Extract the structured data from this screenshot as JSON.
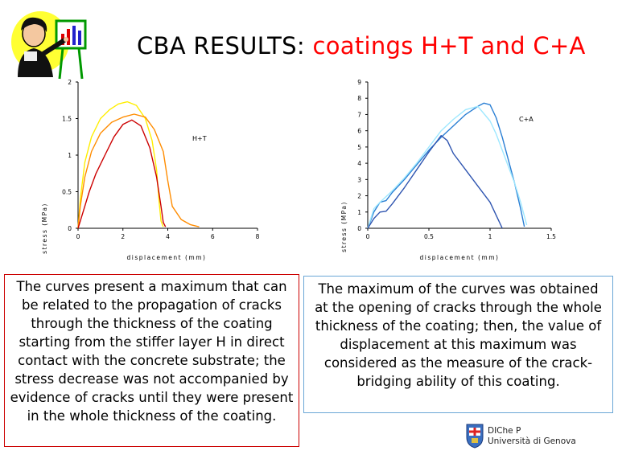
{
  "slide": {
    "title_prefix": "CBA RESULTS: ",
    "title_highlight": "coatings H+T and C+A",
    "left_text": "The curves present a maximum that can be related to the propagation of cracks through the thickness of the coating starting from the stiffer layer H in direct contact with the concrete substrate; the stress decrease was not accompanied by evidence of cracks until they were present in the whole thickness of the coating.",
    "right_text": "The maximum of the curves was obtained at the opening of cracks through the whole thickness of the coating; then, the value of displacement at this maximum was considered as the measure of the crack-bridging ability of this coating.",
    "footer_line1": "DIChe P",
    "footer_line2": "Università di Genova"
  },
  "chart_data": [
    {
      "type": "line",
      "annotation": "H+T",
      "xlabel": "displacement (mm)",
      "ylabel": "stress (MPa)",
      "xlim": [
        0,
        8
      ],
      "ylim": [
        0,
        2
      ],
      "xticks": [
        0,
        2,
        4,
        6,
        8
      ],
      "yticks": [
        0,
        0.5,
        1,
        1.5,
        2
      ],
      "ytick_labels": [
        "0",
        "0.5",
        "1",
        "1.5",
        "2"
      ],
      "grid": false,
      "series": [
        {
          "color": "#ffee00",
          "x": [
            0,
            0.1,
            0.3,
            0.6,
            1,
            1.4,
            1.8,
            2.2,
            2.6,
            3.0,
            3.3,
            3.5,
            3.6,
            3.7,
            3.8
          ],
          "y": [
            0,
            0.4,
            0.9,
            1.25,
            1.5,
            1.62,
            1.7,
            1.73,
            1.68,
            1.5,
            1.2,
            0.8,
            0.4,
            0.1,
            0.02
          ]
        },
        {
          "color": "#ff8c00",
          "x": [
            0,
            0.1,
            0.3,
            0.6,
            1,
            1.5,
            2,
            2.5,
            3.0,
            3.4,
            3.8,
            4.0,
            4.2,
            4.6,
            5.0,
            5.4
          ],
          "y": [
            0,
            0.3,
            0.7,
            1.05,
            1.3,
            1.45,
            1.52,
            1.56,
            1.52,
            1.35,
            1.05,
            0.65,
            0.3,
            0.12,
            0.05,
            0.02
          ]
        },
        {
          "color": "#cc0000",
          "x": [
            0,
            0.2,
            0.5,
            0.8,
            1.2,
            1.6,
            2.0,
            2.4,
            2.8,
            3.2,
            3.5,
            3.7,
            3.8,
            3.9
          ],
          "y": [
            0,
            0.2,
            0.5,
            0.75,
            1.0,
            1.25,
            1.42,
            1.48,
            1.4,
            1.1,
            0.7,
            0.3,
            0.08,
            0.02
          ]
        }
      ]
    },
    {
      "type": "line",
      "annotation": "C+A",
      "xlabel": "displacement (mm)",
      "ylabel": "stress (MPa)",
      "xlim": [
        0,
        1.5
      ],
      "ylim": [
        0,
        9
      ],
      "xticks": [
        0,
        0.5,
        1,
        1.5
      ],
      "yticks": [
        0,
        1,
        2,
        3,
        4,
        5,
        6,
        7,
        8,
        9
      ],
      "ytick_labels": [
        "0",
        "1",
        "2",
        "3",
        "4",
        "5",
        "6",
        "7",
        "8",
        "9"
      ],
      "grid": false,
      "series": [
        {
          "color": "#2a7fd4",
          "x": [
            0,
            0.05,
            0.1,
            0.15,
            0.2,
            0.3,
            0.4,
            0.5,
            0.6,
            0.7,
            0.8,
            0.9,
            0.95,
            1.0,
            1.05,
            1.1,
            1.15,
            1.2,
            1.25,
            1.28
          ],
          "y": [
            0,
            1.0,
            1.6,
            1.7,
            2.2,
            3.0,
            3.9,
            4.8,
            5.6,
            6.3,
            7.0,
            7.5,
            7.7,
            7.6,
            6.8,
            5.6,
            4.2,
            2.8,
            1.2,
            0.1
          ]
        },
        {
          "color": "#9ee8ff",
          "x": [
            0,
            0.05,
            0.1,
            0.2,
            0.3,
            0.4,
            0.5,
            0.6,
            0.7,
            0.8,
            0.9,
            1.0,
            1.05,
            1.1,
            1.15,
            1.2,
            1.25,
            1.3
          ],
          "y": [
            0,
            1.2,
            1.6,
            2.3,
            3.1,
            4.0,
            5.0,
            6.0,
            6.7,
            7.3,
            7.5,
            6.6,
            5.8,
            4.8,
            3.8,
            2.8,
            1.6,
            0.2
          ]
        },
        {
          "color": "#2f55b0",
          "x": [
            0,
            0.05,
            0.1,
            0.15,
            0.2,
            0.3,
            0.4,
            0.5,
            0.6,
            0.65,
            0.7,
            0.8,
            0.9,
            1.0,
            1.05,
            1.1
          ],
          "y": [
            0,
            0.6,
            1.0,
            1.05,
            1.5,
            2.5,
            3.6,
            4.7,
            5.7,
            5.4,
            4.6,
            3.6,
            2.6,
            1.6,
            0.8,
            0.0
          ]
        }
      ]
    }
  ]
}
